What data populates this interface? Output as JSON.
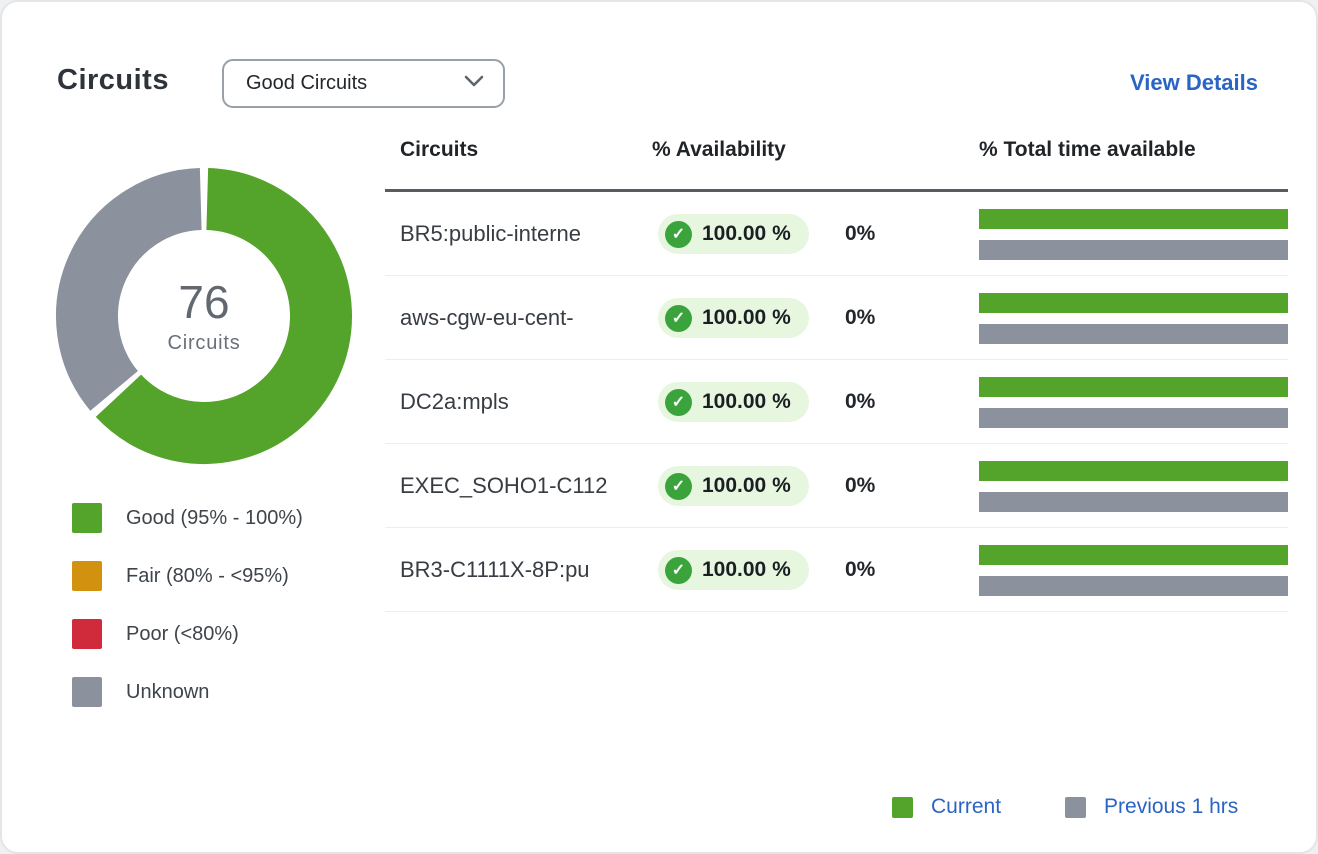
{
  "card": {
    "title": "Circuits",
    "filter": {
      "selected": "Good Circuits"
    },
    "view_details": "View Details"
  },
  "colors": {
    "good": "#54a32a",
    "fair": "#d2920f",
    "poor": "#d02b3a",
    "unknown": "#8b929d",
    "link_blue": "#2a64c4",
    "badge_bg": "#e7f6df",
    "badge_icon": "#3ba33c",
    "bar_current": "#54a32a",
    "bar_previous": "#8b929d"
  },
  "chart_data": {
    "type": "pie",
    "title": "Circuits availability donut",
    "center_value": "76",
    "center_label": "Circuits",
    "segments": [
      {
        "name": "Good (95% - 100%)",
        "value_pct": 63.5,
        "color_key": "good"
      },
      {
        "name": "Unknown",
        "value_pct": 36.5,
        "color_key": "unknown"
      }
    ],
    "legend": [
      {
        "label": "Good (95% - 100%)",
        "color_key": "good"
      },
      {
        "label": "Fair (80% - <95%)",
        "color_key": "fair"
      },
      {
        "label": "Poor (<80%)",
        "color_key": "poor"
      },
      {
        "label": "Unknown",
        "color_key": "unknown"
      }
    ],
    "legend_position": "bottom-left"
  },
  "table": {
    "columns": [
      "Circuits",
      "% Availability",
      "% Total time available"
    ],
    "rows": [
      {
        "name": "BR5:public-interne",
        "availability": "100.00 %",
        "change": "0%",
        "current_pct": 100,
        "previous_pct": 100
      },
      {
        "name": "aws-cgw-eu-cent-",
        "availability": "100.00 %",
        "change": "0%",
        "current_pct": 100,
        "previous_pct": 100
      },
      {
        "name": "DC2a:mpls",
        "availability": "100.00 %",
        "change": "0%",
        "current_pct": 100,
        "previous_pct": 100
      },
      {
        "name": "EXEC_SOHO1-C112",
        "availability": "100.00 %",
        "change": "0%",
        "current_pct": 100,
        "previous_pct": 100
      },
      {
        "name": "BR3-C1111X-8P:pu",
        "availability": "100.00 %",
        "change": "0%",
        "current_pct": 100,
        "previous_pct": 100
      }
    ]
  },
  "bars_legend": [
    {
      "label": "Current",
      "color_key": "bar_current"
    },
    {
      "label": "Previous 1 hrs",
      "color_key": "bar_previous"
    }
  ]
}
